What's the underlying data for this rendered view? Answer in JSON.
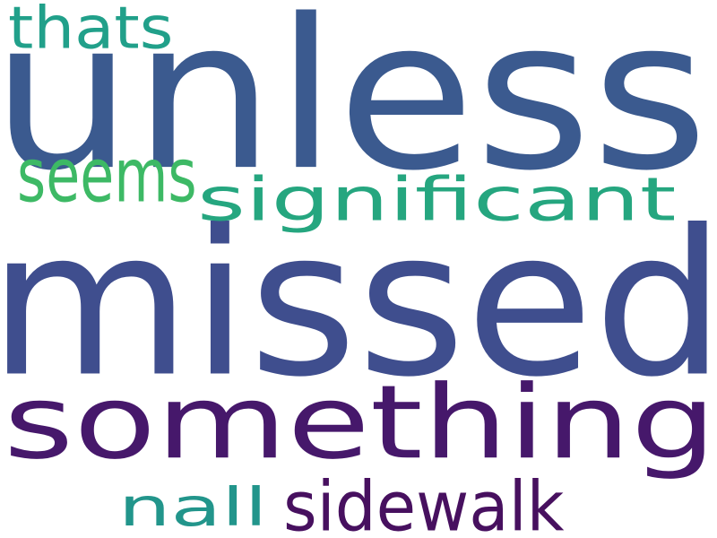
{
  "words": {
    "unless": {
      "text": "unless",
      "color": "#3b5a8f"
    },
    "missed": {
      "text": "missed",
      "color": "#3f4e8e"
    },
    "something": {
      "text": "something",
      "color": "#46186b"
    },
    "significant": {
      "text": "significant",
      "color": "#25a67f"
    },
    "thats": {
      "text": "thats",
      "color": "#21a08a"
    },
    "seems": {
      "text": "seems",
      "color": "#3db965"
    },
    "nall": {
      "text": "nall",
      "color": "#22958b"
    },
    "sidewalk": {
      "text": "sidewalk",
      "color": "#47105f"
    }
  }
}
